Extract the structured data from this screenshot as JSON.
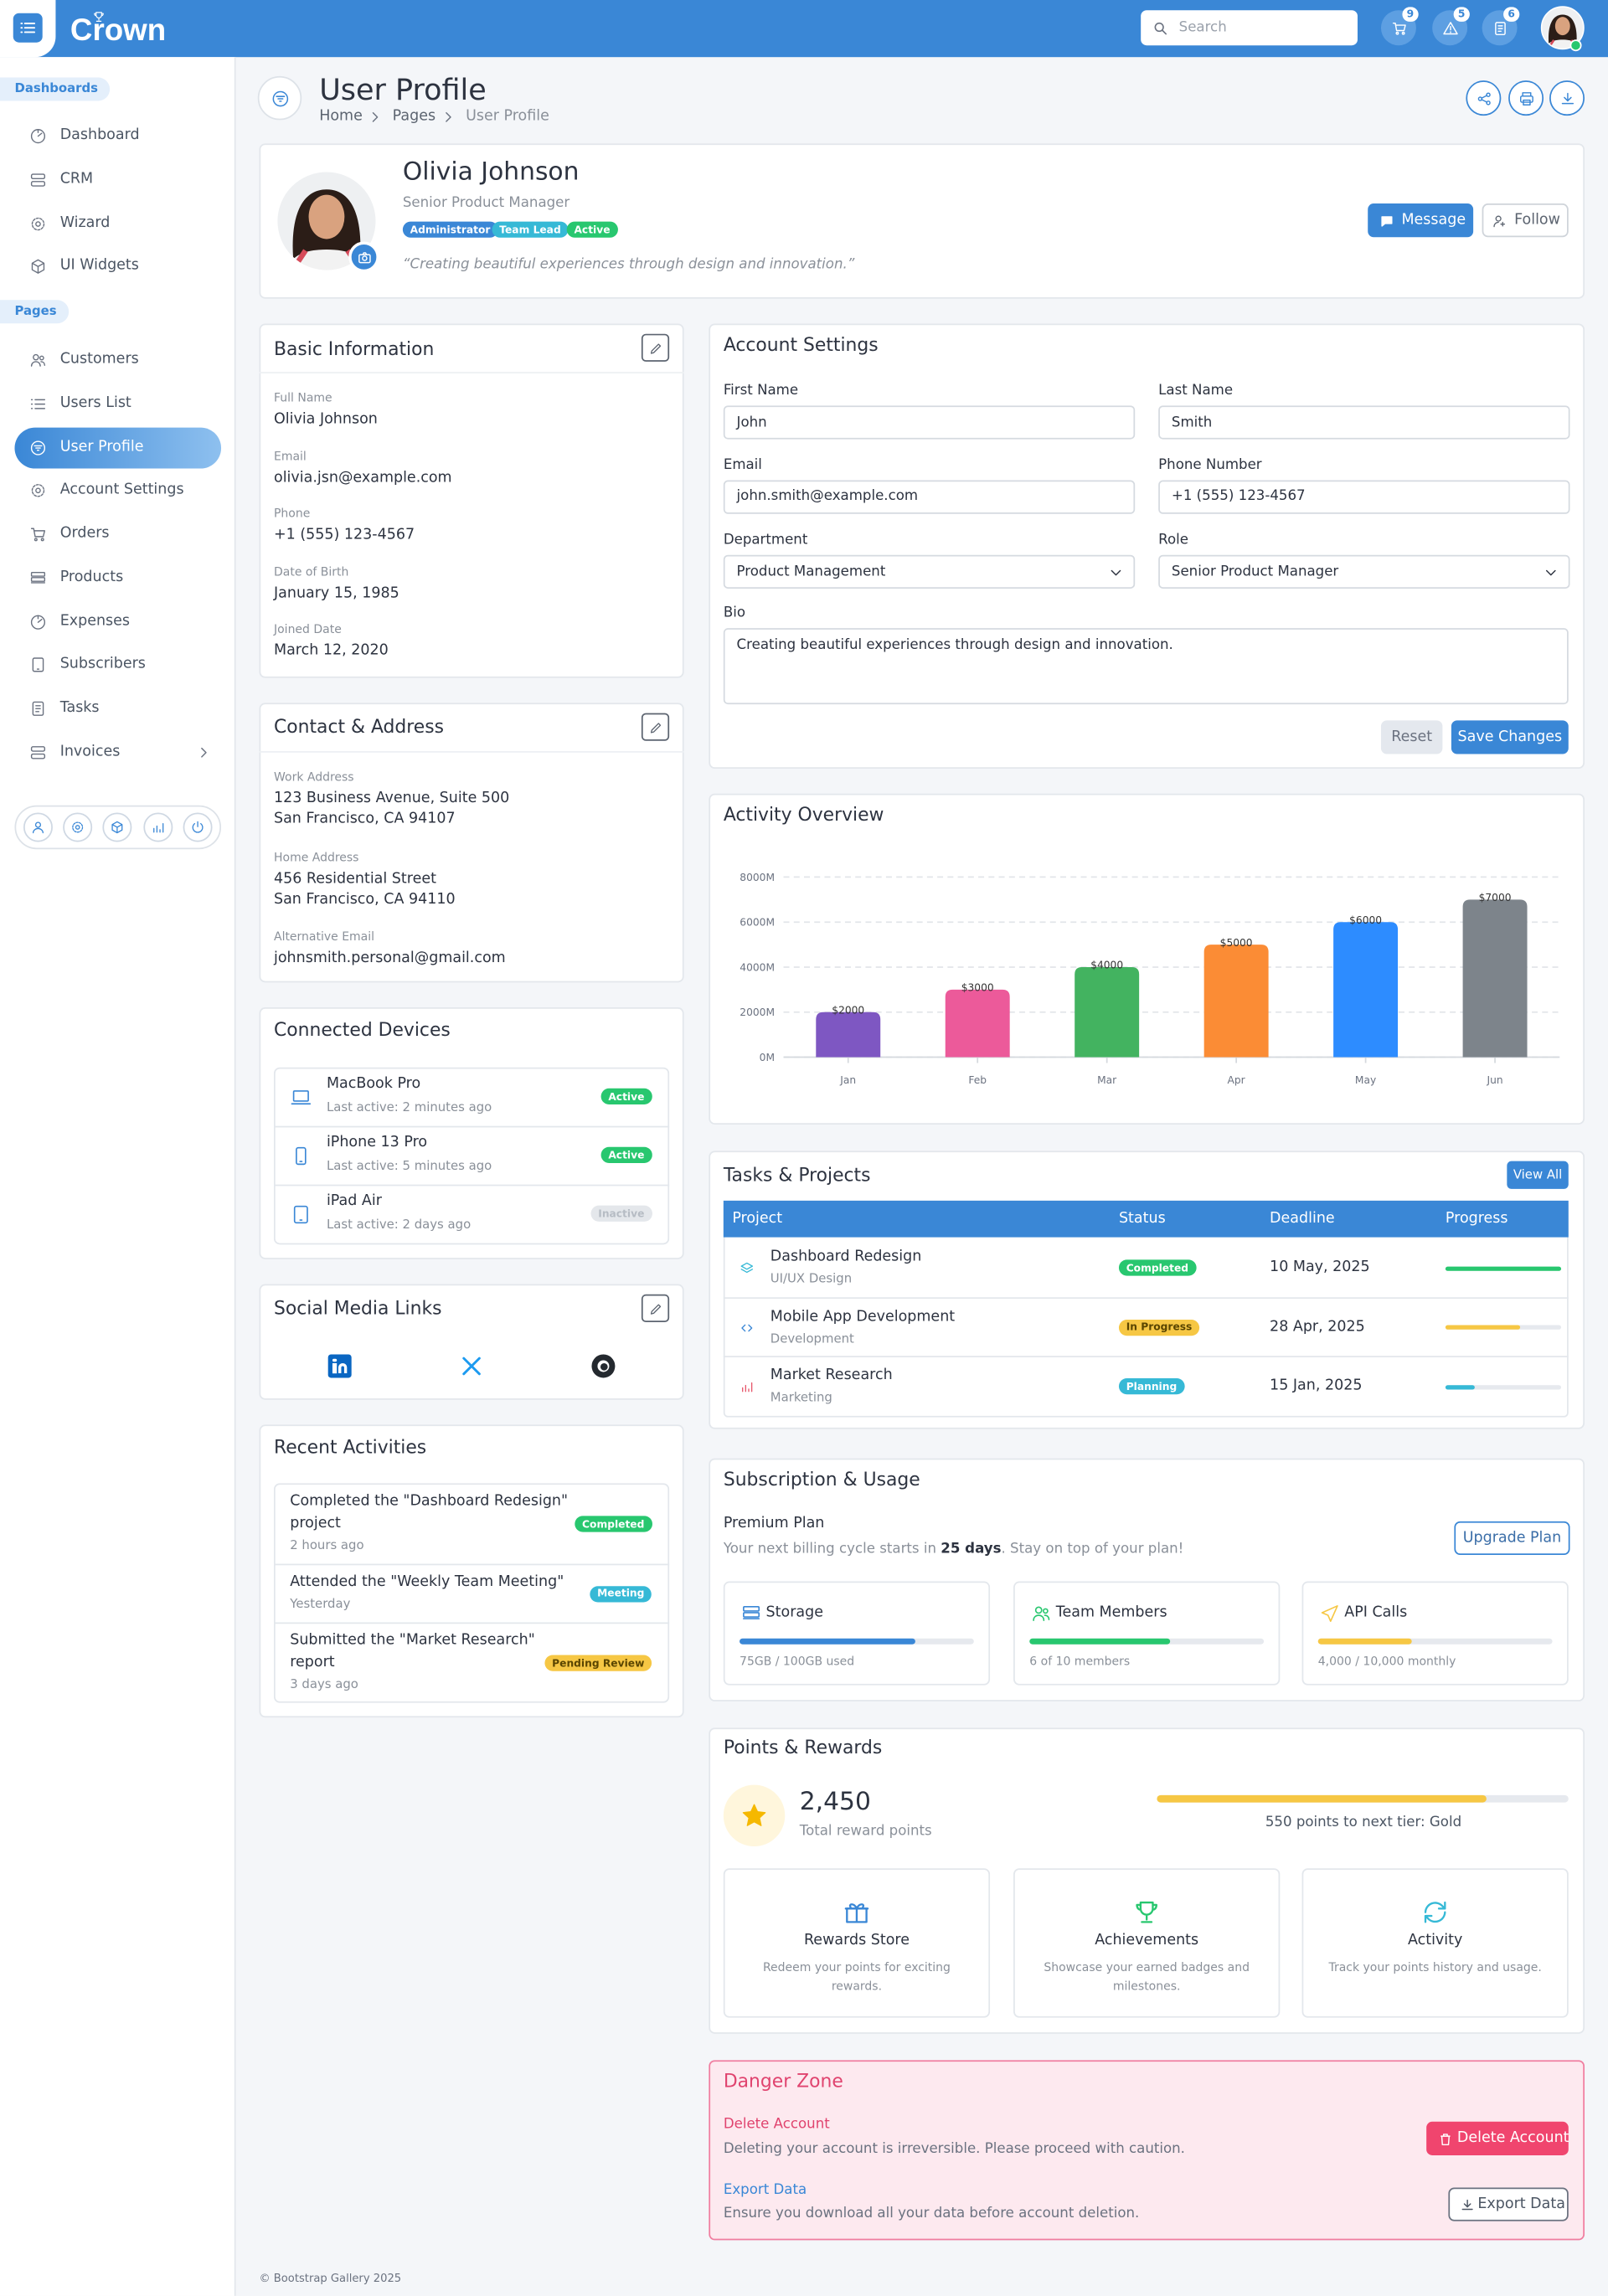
{
  "header": {
    "brand": "Crown",
    "search_placeholder": "Search",
    "badges": [
      9,
      5,
      6
    ]
  },
  "sidebar": {
    "sections": [
      {
        "title": "Dashboards",
        "items": [
          "Dashboard",
          "CRM",
          "Wizard",
          "UI Widgets"
        ]
      },
      {
        "title": "Pages",
        "items": [
          "Customers",
          "Users List",
          "User Profile",
          "Account Settings",
          "Orders",
          "Products",
          "Expenses",
          "Subscribers",
          "Tasks",
          "Invoices"
        ]
      }
    ]
  },
  "page": {
    "title": "User Profile",
    "breadcrumb": [
      "Home",
      "Pages",
      "User Profile"
    ]
  },
  "profile": {
    "name": "Olivia Johnson",
    "role": "Senior Product Manager",
    "tags": [
      "Administrator",
      "Team Lead",
      "Active"
    ],
    "quote": "“Creating beautiful experiences through design and innovation.”",
    "buttons": [
      "Message",
      "Follow"
    ]
  },
  "basic_info": {
    "title": "Basic Information",
    "fields": [
      {
        "label": "Full Name",
        "value": "Olivia Johnson"
      },
      {
        "label": "Email",
        "value": "olivia.jsn@example.com"
      },
      {
        "label": "Phone",
        "value": "+1 (555) 123-4567"
      },
      {
        "label": "Date of Birth",
        "value": "January 15, 1985"
      },
      {
        "label": "Joined Date",
        "value": "March 12, 2020"
      }
    ]
  },
  "contact": {
    "title": "Contact & Address",
    "fields": [
      {
        "label": "Work Address",
        "lines": [
          "123 Business Avenue, Suite 500",
          "San Francisco, CA 94107"
        ]
      },
      {
        "label": "Home Address",
        "lines": [
          "456 Residential Street",
          "San Francisco, CA 94110"
        ]
      },
      {
        "label": "Alternative Email",
        "lines": [
          "johnsmith.personal@gmail.com"
        ]
      }
    ]
  },
  "devices": {
    "title": "Connected Devices",
    "items": [
      {
        "name": "MacBook Pro",
        "last_active": "Last active: 2 minutes ago",
        "status": "Active"
      },
      {
        "name": "iPhone 13 Pro",
        "last_active": "Last active: 5 minutes ago",
        "status": "Active"
      },
      {
        "name": "iPad Air",
        "last_active": "Last active: 2 days ago",
        "status": "Inactive"
      }
    ]
  },
  "social": {
    "title": "Social Media Links"
  },
  "activities": {
    "title": "Recent Activities",
    "items": [
      {
        "lines": [
          "Completed the \"Dashboard Redesign\"",
          "project"
        ],
        "time": "2 hours ago",
        "badge": "Completed"
      },
      {
        "lines": [
          "Attended the \"Weekly Team Meeting\""
        ],
        "time": "Yesterday",
        "badge": "Meeting"
      },
      {
        "lines": [
          "Submitted the \"Market Research\"",
          "report"
        ],
        "time": "3 days ago",
        "badge": "Pending Review"
      }
    ]
  },
  "account_settings": {
    "title": "Account Settings",
    "fields": [
      {
        "label": "First Name",
        "value": "John"
      },
      {
        "label": "Last Name",
        "value": "Smith"
      },
      {
        "label": "Email",
        "value": "john.smith@example.com"
      },
      {
        "label": "Phone Number",
        "value": "+1 (555) 123-4567"
      }
    ],
    "selects": [
      {
        "label": "Department",
        "value": "Product Management"
      },
      {
        "label": "Role",
        "value": "Senior Product Manager"
      }
    ],
    "bio": {
      "label": "Bio",
      "value": "Creating beautiful experiences through design and innovation."
    },
    "buttons": [
      "Reset",
      "Save Changes"
    ]
  },
  "chart_data": {
    "type": "bar",
    "title": "Activity Overview",
    "categories": [
      "Jan",
      "Feb",
      "Mar",
      "Apr",
      "May",
      "Jun"
    ],
    "values": [
      2000,
      3000,
      4000,
      5000,
      6000,
      7000
    ],
    "value_labels": [
      "$2000",
      "$3000",
      "$4000",
      "$5000",
      "$6000",
      "$7000"
    ],
    "colors": [
      "#7e57c2",
      "#ec5a9a",
      "#43b360",
      "#fb8c35",
      "#2d8cff",
      "#7d848b"
    ],
    "ylim": [
      0,
      8000
    ],
    "yticks": [
      {
        "value": 0,
        "label": "0M"
      },
      {
        "value": 2000,
        "label": "2000M"
      },
      {
        "value": 4000,
        "label": "4000M"
      },
      {
        "value": 6000,
        "label": "6000M"
      },
      {
        "value": 8000,
        "label": "8000M"
      }
    ],
    "grid": true
  },
  "tasks": {
    "title": "Tasks & Projects",
    "view_all": "View All",
    "columns": [
      "Project",
      "Status",
      "Deadline",
      "Progress"
    ],
    "rows": [
      {
        "name": "Dashboard Redesign",
        "category": "UI/UX Design",
        "status": "Completed",
        "deadline": "10 May, 2025",
        "progress": 100
      },
      {
        "name": "Mobile App Development",
        "category": "Development",
        "status": "In Progress",
        "deadline": "28 Apr, 2025",
        "progress": 65
      },
      {
        "name": "Market Research",
        "category": "Marketing",
        "status": "Planning",
        "deadline": "15 Jan, 2025",
        "progress": 25
      }
    ]
  },
  "subscription": {
    "title": "Subscription & Usage",
    "plan": "Premium Plan",
    "billing_pre": "Your next billing cycle starts in ",
    "billing_days": "25 days",
    "billing_post": ". Stay on top of your plan!",
    "upgrade": "Upgrade Plan",
    "usage": [
      {
        "name": "Storage",
        "detail": "75GB / 100GB used",
        "percent": 75
      },
      {
        "name": "Team Members",
        "detail": "6 of 10 members",
        "percent": 60
      },
      {
        "name": "API Calls",
        "detail": "4,000 / 10,000 monthly",
        "percent": 40
      }
    ]
  },
  "rewards": {
    "title": "Points & Rewards",
    "points": "2,450",
    "points_label": "Total reward points",
    "progress": 80,
    "next_tier": "550 points to next tier: Gold",
    "cards": [
      {
        "title": "Rewards Store",
        "lines": [
          "Redeem your points for exciting",
          "rewards."
        ]
      },
      {
        "title": "Achievements",
        "lines": [
          "Showcase your earned badges and",
          "milestones."
        ]
      },
      {
        "title": "Activity",
        "lines": [
          "Track your points history and usage."
        ]
      }
    ]
  },
  "danger": {
    "title": "Danger Zone",
    "items": [
      {
        "title": "Delete Account",
        "text": "Deleting your account is irreversible. Please proceed with caution.",
        "button": "Delete Account"
      },
      {
        "title": "Export Data",
        "text": "Ensure you download all your data before account deletion.",
        "button": "Export Data"
      }
    ]
  },
  "footer": "© Bootstrap Gallery 2025"
}
